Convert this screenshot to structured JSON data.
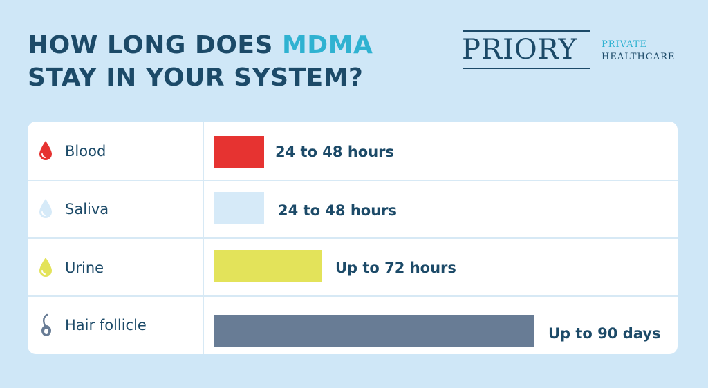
{
  "header": {
    "title_part1": "HOW LONG DOES ",
    "title_highlight": "MDMA",
    "title_part2": "STAY IN YOUR SYSTEM?"
  },
  "logo": {
    "wordmark": "PRIORY",
    "line1": "PRIVATE",
    "line2": "HEALTHCARE"
  },
  "chart_data": {
    "type": "bar",
    "orientation": "horizontal",
    "title": "HOW LONG DOES MDMA STAY IN YOUR SYSTEM?",
    "categories": [
      "Blood",
      "Saliva",
      "Urine",
      "Hair follicle"
    ],
    "values": [
      48,
      48,
      72,
      2160
    ],
    "unit": "hours",
    "data_labels": [
      "24 to 48 hours",
      "24 to 48 hours",
      "Up to 72 hours",
      "Up to 90 days"
    ],
    "colors": [
      "#e63331",
      "#d6eaf8",
      "#e3e35a",
      "#687c95"
    ],
    "icons": [
      "blood-drop-icon",
      "saliva-drop-icon",
      "urine-drop-icon",
      "hair-follicle-icon"
    ],
    "note": "bar lengths are illustrative, not to scale"
  }
}
